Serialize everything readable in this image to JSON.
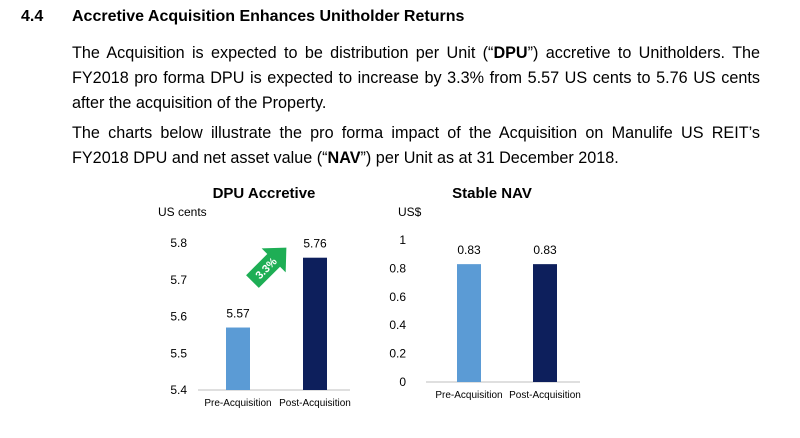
{
  "section": {
    "number": "4.4",
    "title": "Accretive Acquisition Enhances Unitholder Returns"
  },
  "paragraph1": {
    "t1": "The Acquisition is expected to be distribution per Unit (“",
    "b1": "DPU",
    "t2": "”) accretive to Unitholders. The FY2018 pro forma DPU is expected to increase by 3.3% from 5.57 US cents to 5.76 US cents after the acquisition of the Property."
  },
  "paragraph2": {
    "t1": "The charts below illustrate the pro forma impact of the Acquisition on Manulife US REIT’s FY2018 DPU and net asset value (“",
    "b1": "NAV",
    "t2": "”) per Unit as at 31 December 2018."
  },
  "colors": {
    "pre_bar": "#5b9bd5",
    "post_bar": "#0d1f5c",
    "arrow": "#1eae55",
    "axis": "#bfbfbf"
  },
  "chart_data": [
    {
      "type": "bar",
      "title": "DPU Accretive",
      "ylabel": "US cents",
      "categories": [
        "Pre-Acquisition",
        "Post-Acquisition"
      ],
      "values": [
        5.57,
        5.76
      ],
      "value_labels": [
        "5.57",
        "5.76"
      ],
      "ylim": [
        5.4,
        5.8
      ],
      "yticks": [
        5.4,
        5.5,
        5.6,
        5.7,
        5.8
      ],
      "ytick_labels": [
        "5.4",
        "5.5",
        "5.6",
        "5.7",
        "5.8"
      ],
      "grid": false,
      "annotation": {
        "text": "3.3%",
        "kind": "arrow",
        "color": "#1eae55"
      }
    },
    {
      "type": "bar",
      "title": "Stable NAV",
      "ylabel": "US$",
      "categories": [
        "Pre-Acquisition",
        "Post-Acquisition"
      ],
      "values": [
        0.83,
        0.83
      ],
      "value_labels": [
        "0.83",
        "0.83"
      ],
      "ylim": [
        0,
        1
      ],
      "yticks": [
        0,
        0.2,
        0.4,
        0.6,
        0.8,
        1
      ],
      "ytick_labels": [
        "0",
        "0.2",
        "0.4",
        "0.6",
        "0.8",
        "1"
      ],
      "grid": false
    }
  ]
}
